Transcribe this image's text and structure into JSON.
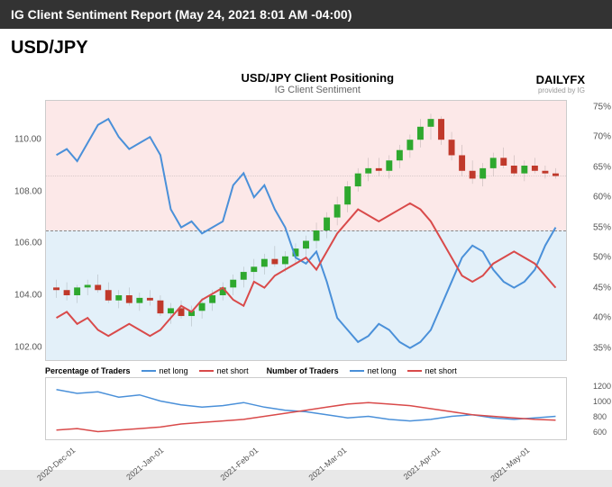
{
  "header": {
    "title": "IG Client Sentiment Report (May 24, 2021 8:01 AM -04:00)"
  },
  "pair": "USD/JPY",
  "chart": {
    "title": "USD/JPY Client Positioning",
    "subtitle": "IG Client Sentiment",
    "logo_main": "DAILYFX",
    "logo_sub": "provided by IG",
    "background_top_color": "#fce8e8",
    "background_bottom_color": "#e3f0f9",
    "left_axis": {
      "ticks": [
        102.0,
        104.0,
        106.0,
        108.0,
        110.0
      ],
      "min": 101.5,
      "max": 111.5,
      "format": "fixed2",
      "color": "#555555",
      "fontsize": 10
    },
    "right_axis": {
      "ticks": [
        35,
        40,
        45,
        50,
        55,
        60,
        65,
        70,
        75
      ],
      "min": 33,
      "max": 76,
      "suffix": "%",
      "color": "#555555",
      "fontsize": 10,
      "midline_value": 50,
      "midline_style": "dashed",
      "midline_color": "#888888"
    },
    "x_axis": {
      "labels": [
        "2020-Dec-01",
        "2021-Jan-01",
        "2021-Feb-01",
        "2021-Mar-01",
        "2021-Apr-01",
        "2021-May-01"
      ],
      "positions_pct": [
        5,
        22,
        40,
        57,
        75,
        92
      ],
      "fontsize": 9,
      "color": "#555555",
      "rotation": -40
    },
    "series": {
      "price": {
        "type": "candlestick",
        "color_up": "#2ea82e",
        "color_down": "#c0392b",
        "wick_color": "#555555",
        "data": [
          {
            "x": 2,
            "o": 104.3,
            "h": 104.6,
            "l": 103.9,
            "c": 104.2
          },
          {
            "x": 4,
            "o": 104.2,
            "h": 104.5,
            "l": 103.8,
            "c": 104.0
          },
          {
            "x": 6,
            "o": 104.0,
            "h": 104.4,
            "l": 103.7,
            "c": 104.3
          },
          {
            "x": 8,
            "o": 104.3,
            "h": 104.6,
            "l": 104.0,
            "c": 104.4
          },
          {
            "x": 10,
            "o": 104.4,
            "h": 104.8,
            "l": 104.1,
            "c": 104.2
          },
          {
            "x": 12,
            "o": 104.2,
            "h": 104.5,
            "l": 103.7,
            "c": 103.8
          },
          {
            "x": 14,
            "o": 103.8,
            "h": 104.2,
            "l": 103.5,
            "c": 104.0
          },
          {
            "x": 16,
            "o": 104.0,
            "h": 104.3,
            "l": 103.6,
            "c": 103.7
          },
          {
            "x": 18,
            "o": 103.7,
            "h": 104.1,
            "l": 103.4,
            "c": 103.9
          },
          {
            "x": 20,
            "o": 103.9,
            "h": 104.2,
            "l": 103.6,
            "c": 103.8
          },
          {
            "x": 22,
            "o": 103.8,
            "h": 104.0,
            "l": 103.2,
            "c": 103.3
          },
          {
            "x": 24,
            "o": 103.3,
            "h": 103.7,
            "l": 102.9,
            "c": 103.5
          },
          {
            "x": 26,
            "o": 103.5,
            "h": 103.8,
            "l": 103.1,
            "c": 103.2
          },
          {
            "x": 28,
            "o": 103.2,
            "h": 103.6,
            "l": 102.8,
            "c": 103.4
          },
          {
            "x": 30,
            "o": 103.4,
            "h": 103.9,
            "l": 103.1,
            "c": 103.7
          },
          {
            "x": 32,
            "o": 103.7,
            "h": 104.2,
            "l": 103.4,
            "c": 104.0
          },
          {
            "x": 34,
            "o": 104.0,
            "h": 104.5,
            "l": 103.8,
            "c": 104.3
          },
          {
            "x": 36,
            "o": 104.3,
            "h": 104.8,
            "l": 104.0,
            "c": 104.6
          },
          {
            "x": 38,
            "o": 104.6,
            "h": 105.1,
            "l": 104.3,
            "c": 104.9
          },
          {
            "x": 40,
            "o": 104.9,
            "h": 105.4,
            "l": 104.6,
            "c": 105.1
          },
          {
            "x": 42,
            "o": 105.1,
            "h": 105.6,
            "l": 104.8,
            "c": 105.4
          },
          {
            "x": 44,
            "o": 105.4,
            "h": 105.9,
            "l": 105.1,
            "c": 105.2
          },
          {
            "x": 46,
            "o": 105.2,
            "h": 105.7,
            "l": 104.9,
            "c": 105.5
          },
          {
            "x": 48,
            "o": 105.5,
            "h": 106.0,
            "l": 105.2,
            "c": 105.8
          },
          {
            "x": 50,
            "o": 105.8,
            "h": 106.3,
            "l": 105.5,
            "c": 106.1
          },
          {
            "x": 52,
            "o": 106.1,
            "h": 106.8,
            "l": 105.8,
            "c": 106.5
          },
          {
            "x": 54,
            "o": 106.5,
            "h": 107.2,
            "l": 106.2,
            "c": 107.0
          },
          {
            "x": 56,
            "o": 107.0,
            "h": 107.8,
            "l": 106.7,
            "c": 107.5
          },
          {
            "x": 58,
            "o": 107.5,
            "h": 108.4,
            "l": 107.2,
            "c": 108.2
          },
          {
            "x": 60,
            "o": 108.2,
            "h": 108.9,
            "l": 108.0,
            "c": 108.7
          },
          {
            "x": 62,
            "o": 108.7,
            "h": 109.3,
            "l": 108.4,
            "c": 108.9
          },
          {
            "x": 64,
            "o": 108.9,
            "h": 109.3,
            "l": 108.6,
            "c": 108.8
          },
          {
            "x": 66,
            "o": 108.8,
            "h": 109.4,
            "l": 108.5,
            "c": 109.2
          },
          {
            "x": 68,
            "o": 109.2,
            "h": 109.8,
            "l": 108.9,
            "c": 109.6
          },
          {
            "x": 70,
            "o": 109.6,
            "h": 110.2,
            "l": 109.3,
            "c": 110.0
          },
          {
            "x": 72,
            "o": 110.0,
            "h": 110.8,
            "l": 109.7,
            "c": 110.5
          },
          {
            "x": 74,
            "o": 110.5,
            "h": 111.0,
            "l": 110.0,
            "c": 110.8
          },
          {
            "x": 76,
            "o": 110.8,
            "h": 110.9,
            "l": 109.8,
            "c": 110.0
          },
          {
            "x": 78,
            "o": 110.0,
            "h": 110.3,
            "l": 109.2,
            "c": 109.4
          },
          {
            "x": 80,
            "o": 109.4,
            "h": 109.8,
            "l": 108.6,
            "c": 108.8
          },
          {
            "x": 82,
            "o": 108.8,
            "h": 109.2,
            "l": 108.3,
            "c": 108.5
          },
          {
            "x": 84,
            "o": 108.5,
            "h": 109.1,
            "l": 108.2,
            "c": 108.9
          },
          {
            "x": 86,
            "o": 108.9,
            "h": 109.5,
            "l": 108.6,
            "c": 109.3
          },
          {
            "x": 88,
            "o": 109.3,
            "h": 109.7,
            "l": 108.9,
            "c": 109.0
          },
          {
            "x": 90,
            "o": 109.0,
            "h": 109.4,
            "l": 108.6,
            "c": 108.7
          },
          {
            "x": 92,
            "o": 108.7,
            "h": 109.2,
            "l": 108.4,
            "c": 109.0
          },
          {
            "x": 94,
            "o": 109.0,
            "h": 109.3,
            "l": 108.7,
            "c": 108.8
          },
          {
            "x": 96,
            "o": 108.8,
            "h": 109.0,
            "l": 108.5,
            "c": 108.7
          },
          {
            "x": 98,
            "o": 108.7,
            "h": 108.9,
            "l": 108.5,
            "c": 108.6
          }
        ],
        "ref_line": 108.6,
        "ref_line_style": "dashed",
        "ref_line_color": "#888888"
      },
      "net_long_pct": {
        "type": "line",
        "color": "#4a90d9",
        "width": 2,
        "data": [
          [
            2,
            67
          ],
          [
            4,
            68
          ],
          [
            6,
            66
          ],
          [
            8,
            69
          ],
          [
            10,
            72
          ],
          [
            12,
            73
          ],
          [
            14,
            70
          ],
          [
            16,
            68
          ],
          [
            18,
            69
          ],
          [
            20,
            70
          ],
          [
            22,
            67
          ],
          [
            24,
            58
          ],
          [
            26,
            55
          ],
          [
            28,
            56
          ],
          [
            30,
            54
          ],
          [
            32,
            55
          ],
          [
            34,
            56
          ],
          [
            36,
            62
          ],
          [
            38,
            64
          ],
          [
            40,
            60
          ],
          [
            42,
            62
          ],
          [
            44,
            58
          ],
          [
            46,
            55
          ],
          [
            48,
            50
          ],
          [
            50,
            49
          ],
          [
            52,
            51
          ],
          [
            54,
            46
          ],
          [
            56,
            40
          ],
          [
            58,
            38
          ],
          [
            60,
            36
          ],
          [
            62,
            37
          ],
          [
            64,
            39
          ],
          [
            66,
            38
          ],
          [
            68,
            36
          ],
          [
            70,
            35
          ],
          [
            72,
            36
          ],
          [
            74,
            38
          ],
          [
            76,
            42
          ],
          [
            78,
            46
          ],
          [
            80,
            50
          ],
          [
            82,
            52
          ],
          [
            84,
            51
          ],
          [
            86,
            48
          ],
          [
            88,
            46
          ],
          [
            90,
            45
          ],
          [
            92,
            46
          ],
          [
            94,
            48
          ],
          [
            96,
            52
          ],
          [
            98,
            55
          ]
        ]
      },
      "net_short_pct": {
        "type": "line",
        "color": "#d94a4a",
        "width": 2,
        "data": [
          [
            2,
            40
          ],
          [
            4,
            41
          ],
          [
            6,
            39
          ],
          [
            8,
            40
          ],
          [
            10,
            38
          ],
          [
            12,
            37
          ],
          [
            14,
            38
          ],
          [
            16,
            39
          ],
          [
            18,
            38
          ],
          [
            20,
            37
          ],
          [
            22,
            38
          ],
          [
            24,
            40
          ],
          [
            26,
            42
          ],
          [
            28,
            41
          ],
          [
            30,
            43
          ],
          [
            32,
            44
          ],
          [
            34,
            45
          ],
          [
            36,
            43
          ],
          [
            38,
            42
          ],
          [
            40,
            46
          ],
          [
            42,
            45
          ],
          [
            44,
            47
          ],
          [
            46,
            48
          ],
          [
            48,
            49
          ],
          [
            50,
            50
          ],
          [
            52,
            48
          ],
          [
            54,
            51
          ],
          [
            56,
            54
          ],
          [
            58,
            56
          ],
          [
            60,
            58
          ],
          [
            62,
            57
          ],
          [
            64,
            56
          ],
          [
            66,
            57
          ],
          [
            68,
            58
          ],
          [
            70,
            59
          ],
          [
            72,
            58
          ],
          [
            74,
            56
          ],
          [
            76,
            53
          ],
          [
            78,
            50
          ],
          [
            80,
            47
          ],
          [
            82,
            46
          ],
          [
            84,
            47
          ],
          [
            86,
            49
          ],
          [
            88,
            50
          ],
          [
            90,
            51
          ],
          [
            92,
            50
          ],
          [
            94,
            49
          ],
          [
            96,
            47
          ],
          [
            98,
            45
          ]
        ]
      }
    },
    "legends": {
      "pct": {
        "title": "Percentage of Traders",
        "items": [
          {
            "label": "net long",
            "color": "#4a90d9"
          },
          {
            "label": "net short",
            "color": "#d94a4a"
          }
        ]
      },
      "num": {
        "title": "Number of Traders",
        "items": [
          {
            "label": "net long",
            "color": "#4a90d9"
          },
          {
            "label": "net short",
            "color": "#d94a4a"
          }
        ]
      }
    },
    "lower": {
      "right_axis": {
        "ticks": [
          600,
          800,
          1000,
          1200
        ],
        "min": 500,
        "max": 1300,
        "fontsize": 9
      },
      "net_long_num": {
        "color": "#4a90d9",
        "width": 1.5,
        "data": [
          [
            2,
            1150
          ],
          [
            6,
            1100
          ],
          [
            10,
            1120
          ],
          [
            14,
            1050
          ],
          [
            18,
            1080
          ],
          [
            22,
            1000
          ],
          [
            26,
            950
          ],
          [
            30,
            920
          ],
          [
            34,
            940
          ],
          [
            38,
            980
          ],
          [
            42,
            920
          ],
          [
            46,
            880
          ],
          [
            50,
            860
          ],
          [
            54,
            820
          ],
          [
            58,
            780
          ],
          [
            62,
            800
          ],
          [
            66,
            760
          ],
          [
            70,
            740
          ],
          [
            74,
            760
          ],
          [
            78,
            800
          ],
          [
            82,
            820
          ],
          [
            86,
            780
          ],
          [
            90,
            760
          ],
          [
            94,
            780
          ],
          [
            98,
            800
          ]
        ]
      },
      "net_short_num": {
        "color": "#d94a4a",
        "width": 1.5,
        "data": [
          [
            2,
            620
          ],
          [
            6,
            640
          ],
          [
            10,
            600
          ],
          [
            14,
            620
          ],
          [
            18,
            640
          ],
          [
            22,
            660
          ],
          [
            26,
            700
          ],
          [
            30,
            720
          ],
          [
            34,
            740
          ],
          [
            38,
            760
          ],
          [
            42,
            800
          ],
          [
            46,
            840
          ],
          [
            50,
            880
          ],
          [
            54,
            920
          ],
          [
            58,
            960
          ],
          [
            62,
            980
          ],
          [
            66,
            960
          ],
          [
            70,
            940
          ],
          [
            74,
            900
          ],
          [
            78,
            860
          ],
          [
            82,
            820
          ],
          [
            86,
            800
          ],
          [
            90,
            780
          ],
          [
            94,
            760
          ],
          [
            98,
            750
          ]
        ]
      }
    }
  }
}
